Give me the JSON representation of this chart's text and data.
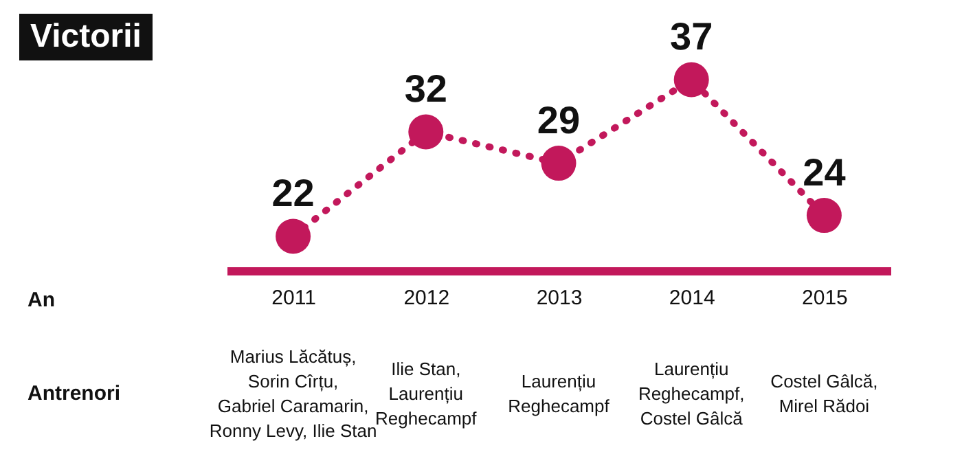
{
  "chart_data": {
    "type": "line",
    "title": "Victorii",
    "categories": [
      "2011",
      "2012",
      "2013",
      "2014",
      "2015"
    ],
    "series": [
      {
        "color": "#c2185b",
        "values": [
          22,
          32,
          29,
          37,
          24
        ]
      }
    ],
    "data_labels": true,
    "marker": "circle",
    "line_style": "dotted",
    "tick_labels": "x",
    "annotations": [
      "An",
      "Antrenori",
      "Marius Lăcătuș,\nSorin Cîrțu,\nGabriel Caramarin,\nRonny Levy, Ilie Stan",
      "Ilie Stan,\nLaurențiu\nReghecampf",
      "Laurențiu\nReghecampf",
      "Laurențiu\nReghecampf,\nCostel Gâlcă",
      "Costel Gâlcă,\nMirel Rădoi"
    ]
  }
}
